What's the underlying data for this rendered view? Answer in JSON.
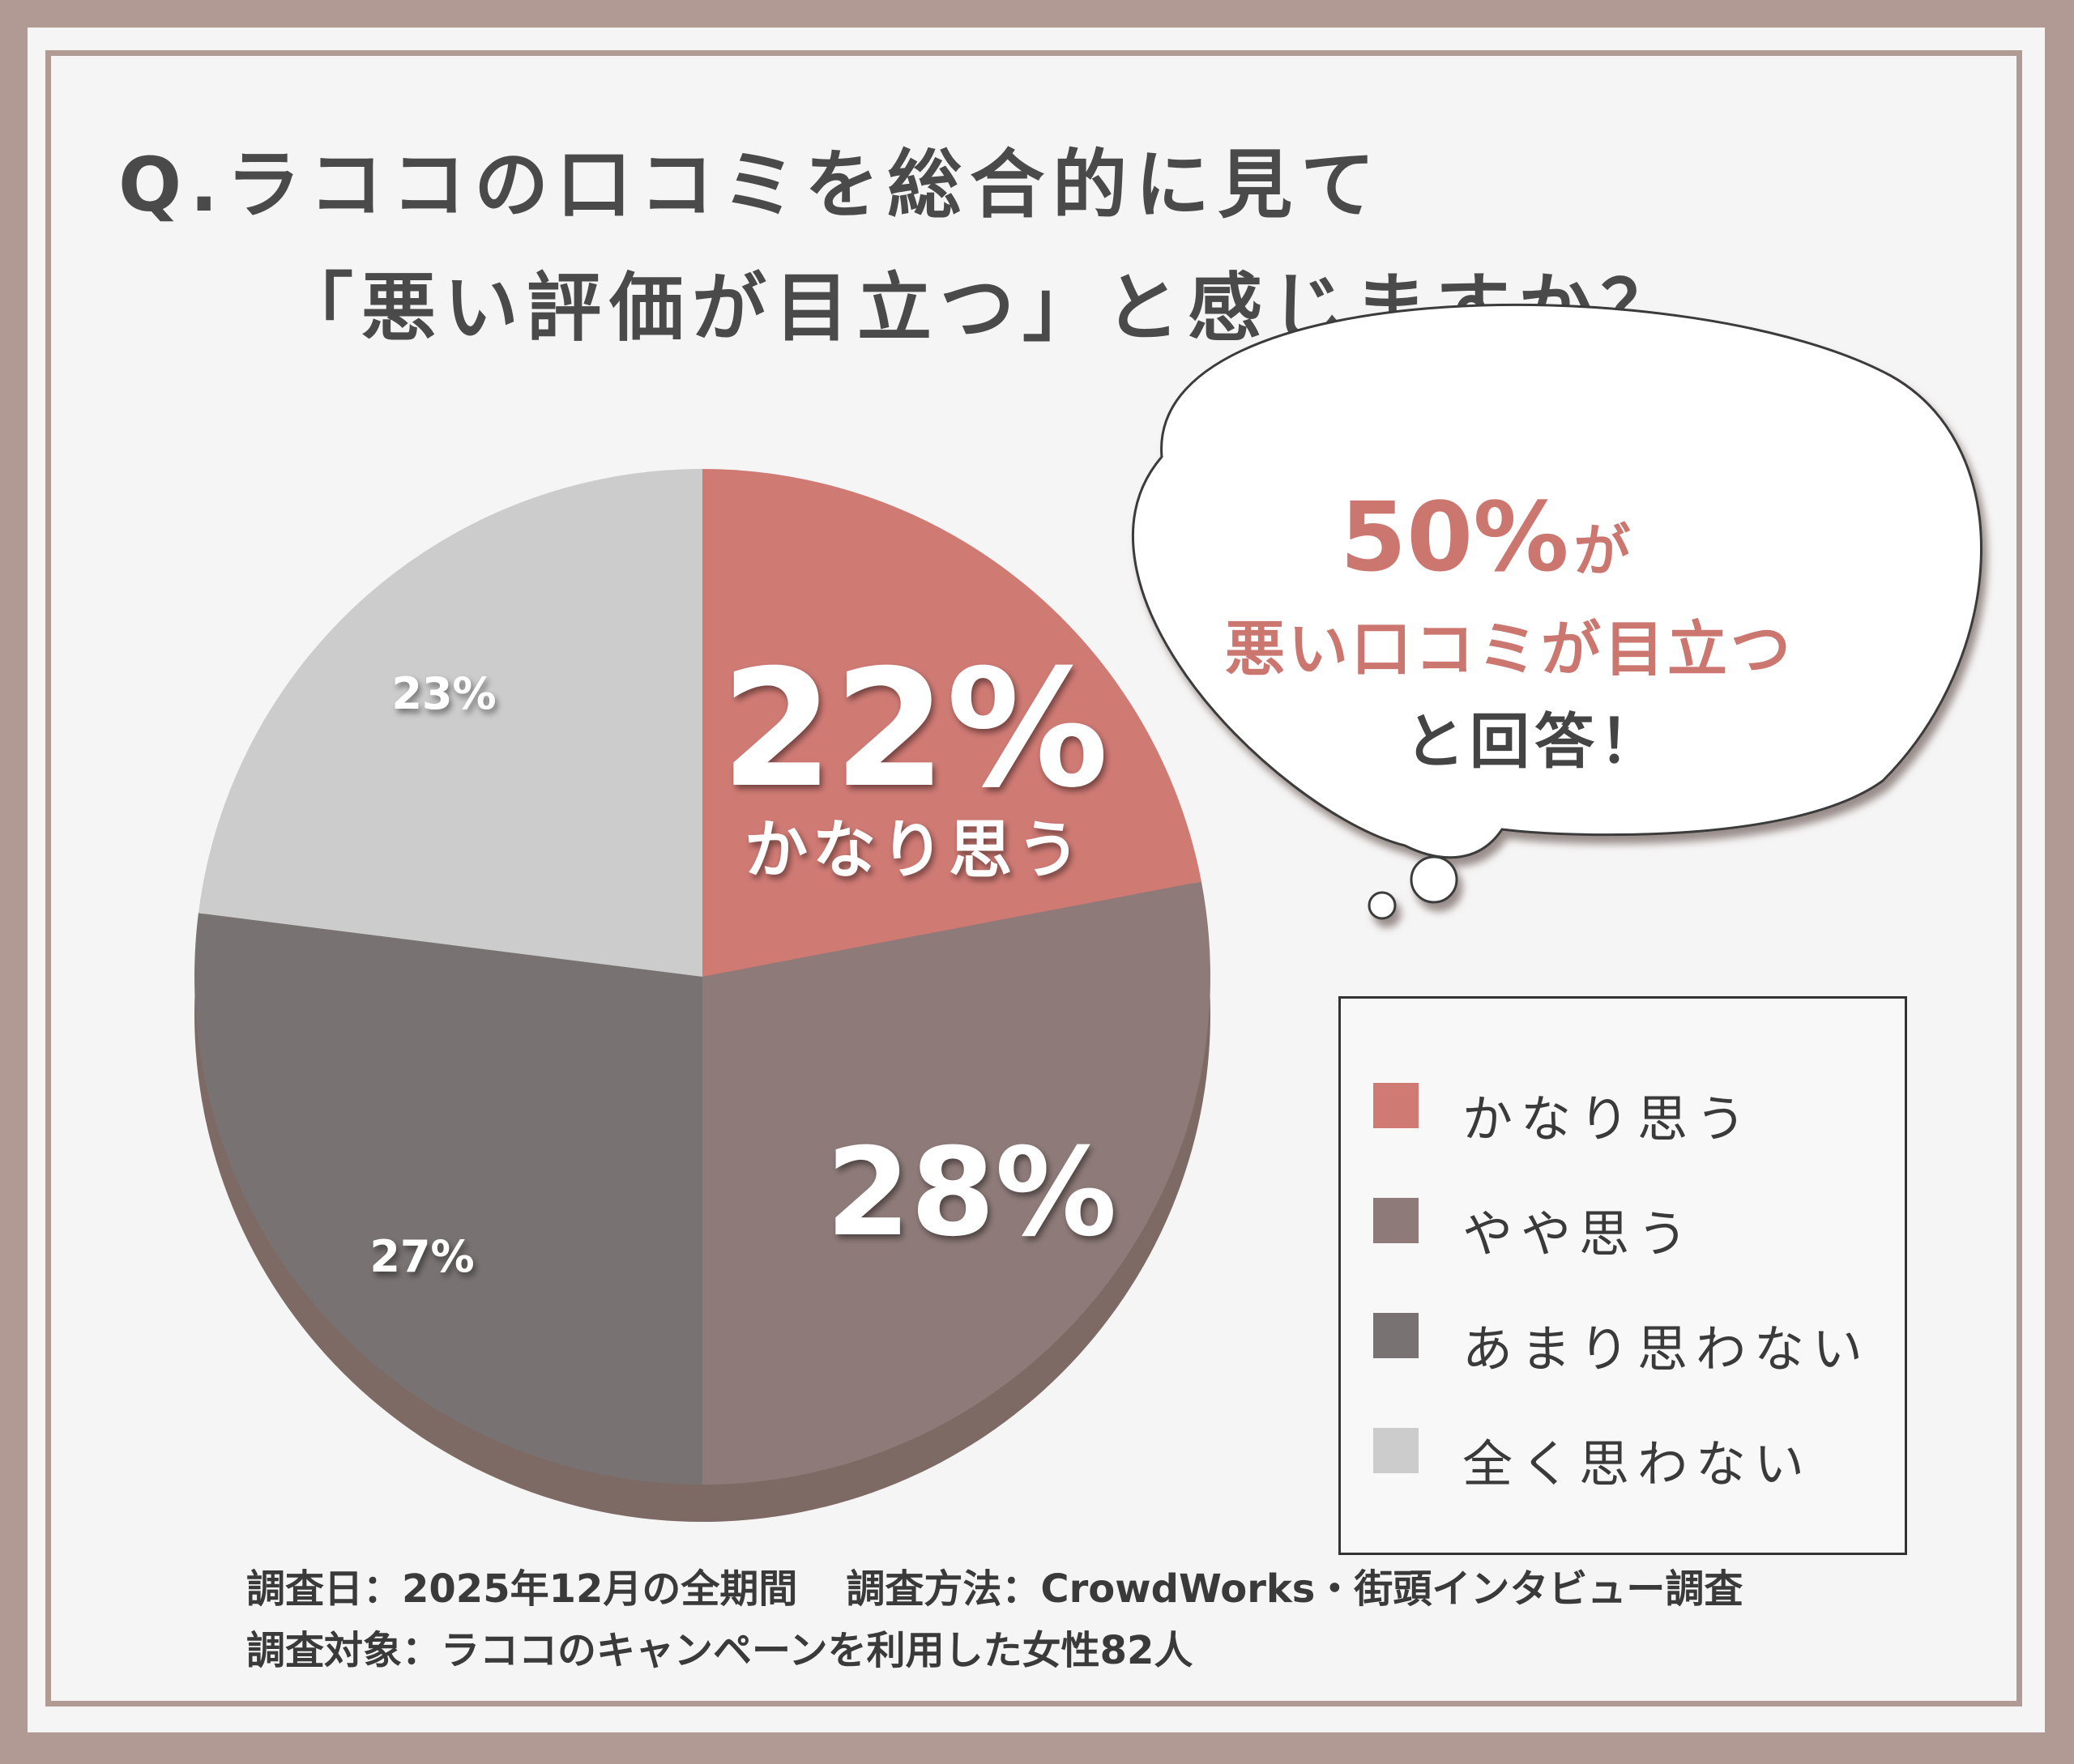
{
  "title": {
    "line1": "Q.ラココの口コミを総合的に見て",
    "line2": "「悪い評価が目立つ」と感じますか？"
  },
  "bubble": {
    "percent": "50%",
    "ga": "が",
    "line2": "悪い口コミが目立つ",
    "line3": "と回答！"
  },
  "slice_labels": {
    "s1_pct": "22%",
    "s1_name": "かなり思う",
    "s2_pct": "28%",
    "s3_pct": "27%",
    "s4_pct": "23%"
  },
  "legend": {
    "items": [
      {
        "label": "かなり思う",
        "color": "#d07a74"
      },
      {
        "label": "やや思う",
        "color": "#8e7b79"
      },
      {
        "label": "あまり思わない",
        "color": "#787272"
      },
      {
        "label": "全く思わない",
        "color": "#cccccc"
      }
    ]
  },
  "footer": {
    "date": "調査日：2025年12月の全期間",
    "method": "調査方法：CrowdWorks・街頭インタビュー調査",
    "target": "調査対象：ラココのキャンペーンを利用した女性82人"
  },
  "chart_data": {
    "type": "pie",
    "title": "Q.ラココの口コミを総合的に見て「悪い評価が目立つ」と感じますか？",
    "categories": [
      "かなり思う",
      "やや思う",
      "あまり思わない",
      "全く思わない"
    ],
    "values": [
      22,
      28,
      27,
      23
    ],
    "unit": "%",
    "colors": [
      "#d07a74",
      "#8e7b79",
      "#787272",
      "#cccccc"
    ],
    "legend_position": "right"
  }
}
